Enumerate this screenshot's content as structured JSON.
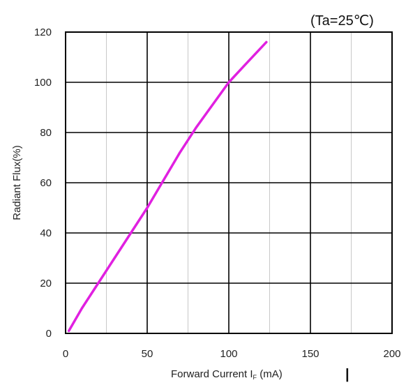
{
  "chart_data": {
    "type": "line",
    "annotation": "(Ta=25℃)",
    "xlabel": "Forward Current I",
    "xlabel_subscript": "F",
    "xlabel_unit": " (mA)",
    "xlabel_marker": "|",
    "ylabel": "Radiant Flux(%)",
    "xlim": [
      0,
      200
    ],
    "ylim": [
      0,
      120
    ],
    "x_ticks": [
      0,
      50,
      100,
      150,
      200
    ],
    "x_tick_labels": [
      "0",
      "50",
      "100",
      "150",
      "200"
    ],
    "y_ticks": [
      0,
      20,
      40,
      60,
      80,
      100,
      120
    ],
    "y_tick_labels": [
      "0",
      "20",
      "40",
      "60",
      "80",
      "100",
      "120"
    ],
    "grid": true,
    "series": [
      {
        "color": "#e020e0",
        "x": [
          2,
          10,
          20,
          30,
          40,
          50,
          60,
          70,
          80,
          90,
          100,
          110,
          123
        ],
        "y": [
          1,
          10,
          20,
          30,
          40,
          50,
          61,
          72,
          82,
          91,
          100,
          107,
          116
        ]
      }
    ]
  }
}
